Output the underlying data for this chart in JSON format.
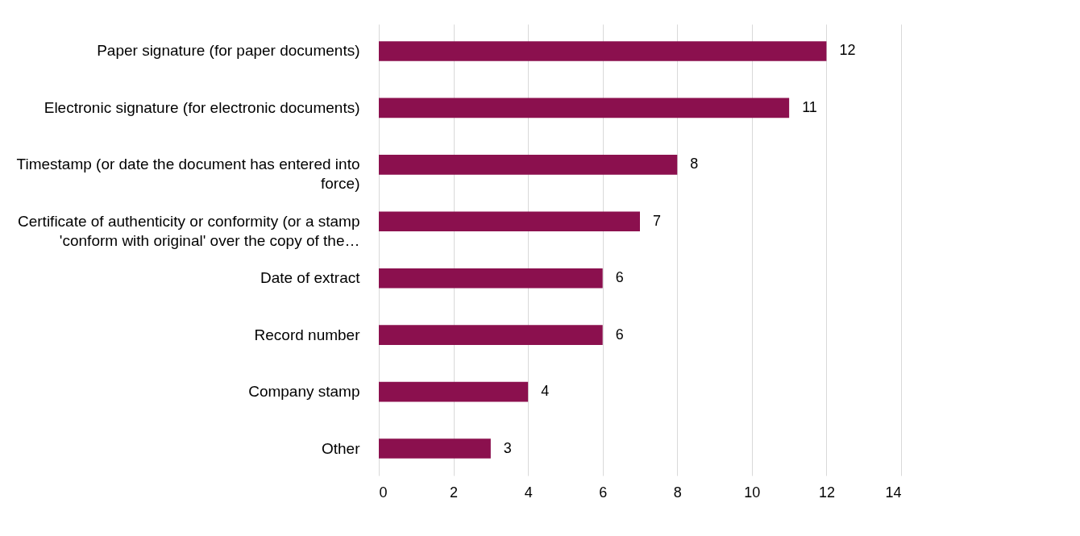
{
  "chart_data": {
    "type": "bar",
    "orientation": "horizontal",
    "categories": [
      "Paper signature (for paper documents)",
      "Electronic signature (for electronic documents)",
      "Timestamp (or date the document has entered into force)",
      "Certificate of authenticity or conformity (or a stamp 'conform with original' over the copy of the…",
      "Date of extract",
      "Record number",
      "Company stamp",
      "Other"
    ],
    "values": [
      12,
      11,
      8,
      7,
      6,
      6,
      4,
      3
    ],
    "color": "#8b104e",
    "xlim": [
      0,
      14
    ],
    "xticks": [
      0,
      2,
      4,
      6,
      8,
      10,
      12,
      14
    ],
    "grid": "x",
    "data_labels": true
  }
}
